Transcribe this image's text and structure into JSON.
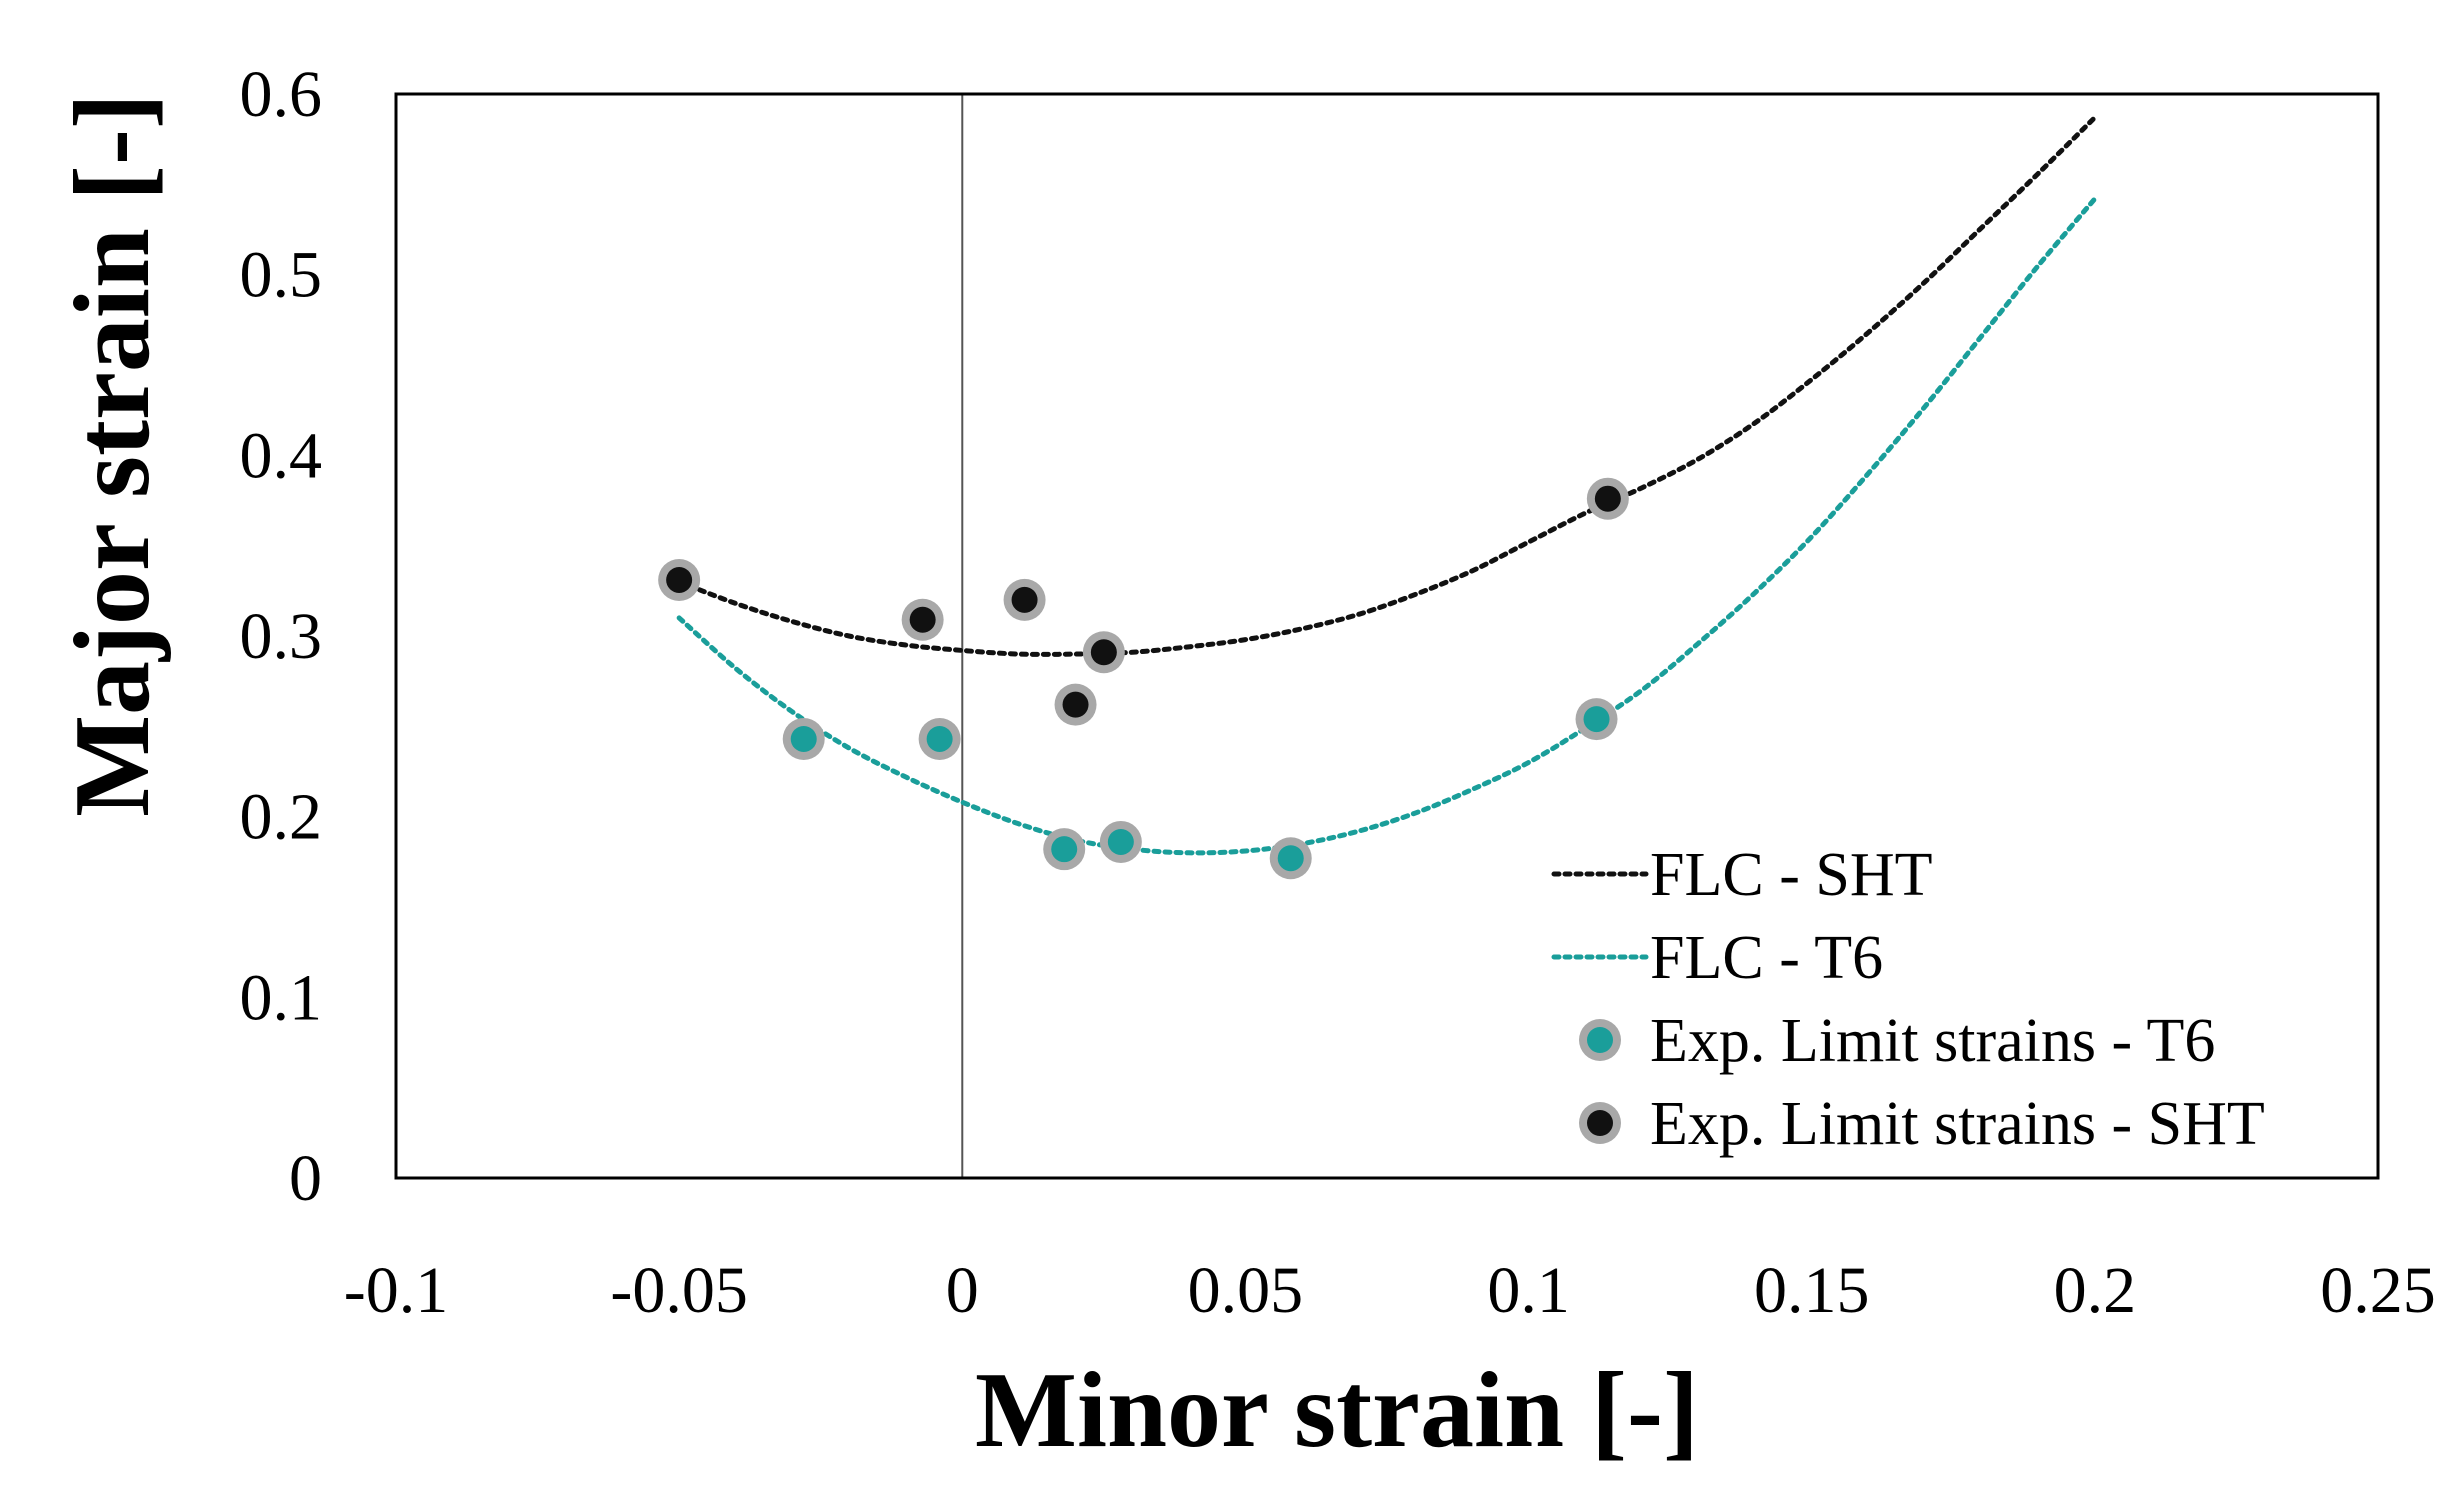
{
  "chart_data": {
    "type": "scatter",
    "title": "",
    "xlabel": "Minor strain [-]",
    "ylabel": "Major strain [-]",
    "xlim": [
      -0.1,
      0.25
    ],
    "ylim": [
      0,
      0.6
    ],
    "x_ticks": [
      -0.1,
      -0.05,
      0,
      0.05,
      0.1,
      0.15,
      0.2,
      0.25
    ],
    "y_ticks": [
      0,
      0.1,
      0.2,
      0.3,
      0.4,
      0.5,
      0.6
    ],
    "x_tick_labels": [
      "-0.1",
      "-0.05",
      "0",
      "0.05",
      "0.1",
      "0.15",
      "0.2",
      "0.25"
    ],
    "y_tick_labels": [
      "0",
      "0.1",
      "0.2",
      "0.3",
      "0.4",
      "0.5",
      "0.6"
    ],
    "grid": false,
    "legend_position": "bottom-right",
    "colors": {
      "sht": "#111111",
      "t6": "#1a9e9a",
      "marker_ring": "#a8a8a8"
    },
    "series": [
      {
        "name": "FLC - SHT",
        "kind": "dotted-curve",
        "color_key": "sht",
        "x": [
          -0.05,
          -0.04,
          -0.03,
          -0.02,
          -0.01,
          0.0,
          0.01,
          0.02,
          0.03,
          0.04,
          0.05,
          0.06,
          0.07,
          0.08,
          0.09,
          0.1,
          0.11,
          0.12,
          0.13,
          0.14,
          0.15,
          0.16,
          0.17,
          0.18,
          0.19,
          0.2
        ],
        "y": [
          0.33,
          0.318,
          0.308,
          0.3,
          0.295,
          0.292,
          0.29,
          0.29,
          0.291,
          0.294,
          0.298,
          0.304,
          0.312,
          0.323,
          0.336,
          0.352,
          0.368,
          0.382,
          0.398,
          0.418,
          0.442,
          0.468,
          0.496,
          0.526,
          0.556,
          0.587
        ]
      },
      {
        "name": "FLC - T6",
        "kind": "dotted-curve",
        "color_key": "t6",
        "x": [
          -0.05,
          -0.04,
          -0.03,
          -0.02,
          -0.01,
          0.0,
          0.01,
          0.02,
          0.03,
          0.04,
          0.05,
          0.06,
          0.07,
          0.08,
          0.09,
          0.1,
          0.11,
          0.12,
          0.13,
          0.14,
          0.15,
          0.16,
          0.17,
          0.18,
          0.19,
          0.2
        ],
        "y": [
          0.31,
          0.282,
          0.258,
          0.238,
          0.222,
          0.208,
          0.196,
          0.187,
          0.182,
          0.18,
          0.181,
          0.185,
          0.192,
          0.202,
          0.215,
          0.23,
          0.249,
          0.27,
          0.296,
          0.324,
          0.355,
          0.39,
          0.427,
          0.466,
          0.505,
          0.542
        ]
      },
      {
        "name": "Exp. Limit strains - T6",
        "kind": "points",
        "color_key": "t6",
        "x": [
          -0.028,
          -0.004,
          0.018,
          0.028,
          0.058,
          0.112
        ],
        "y": [
          0.243,
          0.243,
          0.182,
          0.186,
          0.177,
          0.254
        ]
      },
      {
        "name": "Exp. Limit strains - SHT",
        "kind": "points",
        "color_key": "sht",
        "x": [
          -0.05,
          -0.007,
          0.011,
          0.02,
          0.025,
          0.114
        ],
        "y": [
          0.331,
          0.309,
          0.32,
          0.262,
          0.291,
          0.376
        ]
      }
    ]
  }
}
